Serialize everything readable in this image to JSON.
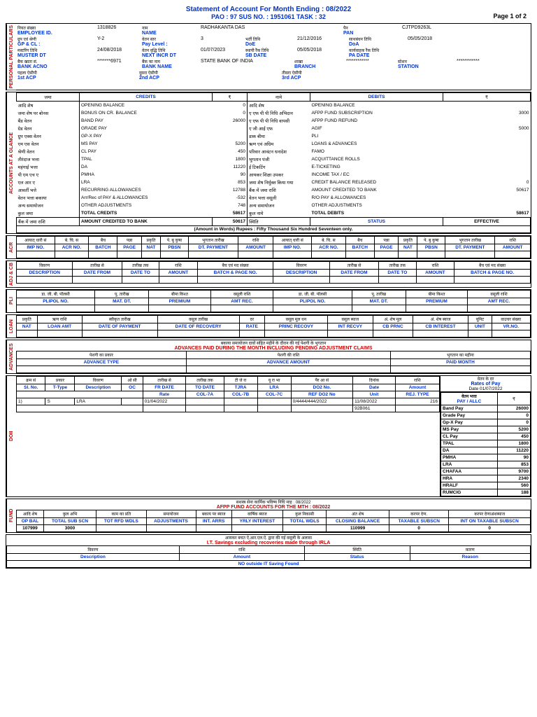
{
  "header": {
    "title": "Statement of Account For Month Ending : 08/2022",
    "subtitle": "PAO : 97   SUS NO. : 1951061  TASK : 32",
    "page": "Page 1 of 2"
  },
  "personal": {
    "label": "PERSONAL PARTICULARS",
    "emp_id_h": "नियत संख्या",
    "emp_id_l": "EMPLOYEE ID.",
    "emp_id_v": "1318826",
    "name_h": "नाम",
    "name_l": "NAME",
    "name_v": "RADHAKANTA DAS",
    "pan_h": "पैन",
    "pan_l": "PAN",
    "pan_v": "CJTPD9263L",
    "gp_h": "ग्रुप एवं श्रेणी",
    "gp_l": "GP & CL :",
    "gp_v": "Y-2",
    "pay_h": "वेतन स्तर",
    "pay_l": "Pay Level :",
    "pay_v": "3",
    "doe_h": "भर्ती तिथि",
    "doe_l": "DoE",
    "doe_v": "21/12/2016",
    "doa_h": "साथबंधन तिथि",
    "doa_l": "DoA",
    "doa_v": "05/05/2018",
    "muster_h": "मस्टरिंग तिथि",
    "muster_l": "MUSTER DT",
    "muster_v": "24/08/2018",
    "incr_h": "वेतन वृद्धि तिथि",
    "incr_l": "NEXT INCR DT",
    "incr_v": "01/07/2023",
    "sb_h": "स्थायी रैंक तिथि",
    "sb_l": "SB DATE",
    "sb_v": "05/05/2018",
    "pa_h": "कार्यवाहक रैंक तिथि",
    "pa_l": "PA DATE",
    "pa_v": "",
    "acno_h": "बैंक खाता सं.",
    "acno_l": "BANK ACNO",
    "acno_v": "*******6971",
    "bank_h": "बैंक का नाम",
    "bank_l": "BANK NAME",
    "bank_v": "STATE BANK OF INDIA",
    "branch_h": "शाखा",
    "branch_l": "BRANCH",
    "branch_v": "************",
    "station_h": "स्टेशन",
    "station_l": "STATION",
    "station_v": "************",
    "acp1_h": "पहला ऐसीपी",
    "acp1_l": "1st ACP",
    "acp2_h": "दूसरा ऐसीपी",
    "acp2_l": "2nd ACP",
    "acp3_h": "तीसरा ऐसीपी",
    "acp3_l": "3rd ACP"
  },
  "accounts": {
    "label": "ACCOUNTS AT A GLANCE",
    "credits_h": "जमा",
    "credits_l": "CREDITS",
    "debits_h": "नामे",
    "debits_l": "DEBITS",
    "rupee": "₹",
    "credit_items": [
      {
        "h": "आदि शेष",
        "l": "OPENING BALANCE",
        "v": "0"
      },
      {
        "h": "जमा शेष पर बोनस",
        "l": "BONUS ON CR. BALANCE",
        "v": "0"
      },
      {
        "h": "बैंड वेतन",
        "l": "BAND PAY",
        "v": "26000"
      },
      {
        "h": "ग्रेड वेतन",
        "l": "GRADE PAY",
        "v": ""
      },
      {
        "h": "ग्रुप एक्स वेतन",
        "l": "GP-X PAY",
        "v": ""
      },
      {
        "h": "एम एस वेतन",
        "l": "MS PAY",
        "v": "5200"
      },
      {
        "h": "श्रेणी वेतन",
        "l": "CL PAY",
        "v": "450"
      },
      {
        "h": "तीरंदाज भत्ता",
        "l": "TPAL",
        "v": "1800"
      },
      {
        "h": "महंगाई भत्ता",
        "l": "DA",
        "v": "11220"
      },
      {
        "h": "पी एम एच ए",
        "l": "PMHA",
        "v": "90"
      },
      {
        "h": "एल आर ए",
        "l": "LRA",
        "v": "853"
      },
      {
        "h": "आवर्ती भत्ते",
        "l": "RECURRING ALLOWANCES",
        "v": "12788"
      },
      {
        "h": "वेतन भत्ता बकाया",
        "l": "Arr/Rec of PAY & ALLOWANCES",
        "v": "-532"
      },
      {
        "h": "अन्य समायोजन",
        "l": "OTHER ADJUSTMENTS",
        "v": "748"
      },
      {
        "h": "कुल जमा",
        "l": "TOTAL CREDITS",
        "v": "58617"
      }
    ],
    "debit_items": [
      {
        "h": "आदि शेष",
        "l": "OPENING BALANCE",
        "v": ""
      },
      {
        "h": "ए एफ पी पी निधि अभिदान",
        "l": "AFPP FUND SUBSCRIPTION",
        "v": "3000"
      },
      {
        "h": "ए एफ पी पी निधि वापसी",
        "l": "AFPP FUND REFUND",
        "v": ""
      },
      {
        "h": "ए जी आई एफ",
        "l": "AGIF",
        "v": "5000"
      },
      {
        "h": "डाक बीमा",
        "l": "PLI",
        "v": ""
      },
      {
        "h": "ऋण एवं अग्रिम",
        "l": "LOANS & ADVANCES",
        "v": ""
      },
      {
        "h": "परिवार आवंटन धनादेश",
        "l": "FAMO",
        "v": ""
      },
      {
        "h": "भुगतान पंजी",
        "l": "ACQUITTANCE ROLLS",
        "v": ""
      },
      {
        "h": "ई टिकटिंग",
        "l": "E-TICKETING",
        "v": ""
      },
      {
        "h": "आयकर शिक्षा उपकर",
        "l": "INCOME TAX / EC",
        "v": ""
      },
      {
        "h": "जमा शेष निर्मुक्त किया गया",
        "l": "CREDIT BALANCE RELEASED",
        "v": "0"
      },
      {
        "h": "बैंक में जमा राशि",
        "l": "AMOUNT CREDITED TO BANK",
        "v": "50617"
      },
      {
        "h": "वेतन भत्ता वसूली",
        "l": "R/O PAY & ALLOWANCES",
        "v": ""
      },
      {
        "h": "अन्य समायोजन",
        "l": "OTHER ADJUSTMENTS",
        "v": ""
      },
      {
        "h": "कुल नामे",
        "l": "TOTAL DEBITS",
        "v": "58617"
      }
    ],
    "credited_h": "बैंक में जमा राशि",
    "credited_l": "AMOUNT CREDITED TO BANK",
    "credited_v": "50617",
    "status_h": "स्थिति",
    "status_l": "STATUS",
    "effective": "EFFECTIVE",
    "words": "(Amount in Words) Rupees : Fifty Thousand Six Hundred Seventeen  only."
  },
  "acr": {
    "label": "ACR",
    "headers": [
      {
        "h": "आयात्‌ धारी सं",
        "l": "IMP NO."
      },
      {
        "h": "बे. चि. स",
        "l": "ACR NO."
      },
      {
        "h": "बैच",
        "l": "BATCH"
      },
      {
        "h": "पन्ना",
        "l": "PAGE"
      },
      {
        "h": "प्रकृति",
        "l": "NAT"
      },
      {
        "h": "पे. बु कुषा",
        "l": "PBSN"
      },
      {
        "h": "भुगतान तारीख",
        "l": "DT. PAYMENT"
      },
      {
        "h": "राशि",
        "l": "AMOUNT"
      },
      {
        "h": "आयात्‌ धारी सं",
        "l": "IMP NO."
      },
      {
        "h": "बे. चि. स",
        "l": "ACR NO."
      },
      {
        "h": "बैच",
        "l": "BATCH"
      },
      {
        "h": "पन्ना",
        "l": "PAGE"
      },
      {
        "h": "प्रकृति",
        "l": "NAT"
      },
      {
        "h": "पे. बु कुषा",
        "l": "PBSN"
      },
      {
        "h": "भुगतान तारीख",
        "l": "DT. PAYMENT"
      },
      {
        "h": "राशि",
        "l": "AMOUNT"
      }
    ]
  },
  "adj": {
    "label": "ADJ & CB",
    "headers": [
      {
        "h": "विवरण",
        "l": "DESCRIPTION"
      },
      {
        "h": "तारीख से",
        "l": "DATE FROM"
      },
      {
        "h": "तारीख तक",
        "l": "DATE TO"
      },
      {
        "h": "राशि",
        "l": "AMOUNT"
      },
      {
        "h": "बैच एवं मद संख्या",
        "l": "BATCH & PAGE NO."
      },
      {
        "h": "विवरण",
        "l": "DESCRIPTION"
      },
      {
        "h": "तारीख से",
        "l": "DATE FROM"
      },
      {
        "h": "तारीख तक",
        "l": "DATE TO"
      },
      {
        "h": "राशि",
        "l": "AMOUNT"
      },
      {
        "h": "बैच एवं मद संख्या",
        "l": "BATCH & PAGE NO."
      }
    ]
  },
  "pli": {
    "label": "PLI",
    "headers": [
      {
        "h": "डा. जी. बी. पॉलसी",
        "l": "PLIPOL NO."
      },
      {
        "h": "पू. तारीख",
        "l": "MAT. DT."
      },
      {
        "h": "बीमा किश्त",
        "l": "PREMIUM"
      },
      {
        "h": "वसूली राशि",
        "l": "AMT REC."
      },
      {
        "h": "डा. जी. बी. पॉलसी",
        "l": "PLIPOL NO."
      },
      {
        "h": "पू. तारीख",
        "l": "MAT. DT."
      },
      {
        "h": "बीमा किश्त",
        "l": "PREMIUM"
      },
      {
        "h": "वसूली राशि",
        "l": "AMT REC."
      }
    ]
  },
  "loan": {
    "label": "LOAN",
    "headers": [
      {
        "h": "प्रकृति",
        "l": "NAT"
      },
      {
        "h": "ऋण राशि",
        "l": "LOAN AMT"
      },
      {
        "h": "स्वीकृत तारीख",
        "l": "DATE OF PAYMENT"
      },
      {
        "h": "वसूल तारीख",
        "l": "DATE OF RECOVERY"
      },
      {
        "h": "दर",
        "l": "RATE"
      },
      {
        "h": "वसूल मूल धन",
        "l": "PRINC RECOVY"
      },
      {
        "h": "वसूल ब्याज",
        "l": "INT RECVY"
      },
      {
        "h": "अं. शेष मूल",
        "l": "CB PRNC"
      },
      {
        "h": "अं. शेष ब्याज",
        "l": "CB INTEREST"
      },
      {
        "h": "यूनिट",
        "l": "UNIT"
      },
      {
        "h": "वाउचर संख्या",
        "l": "VR.NO."
      }
    ]
  },
  "advances": {
    "label": "ADVANCES",
    "title_h": "बकाया समायोजन दावों सहित महीने के दौरान की गई पेशगी के भुगतान",
    "title_l": "ADVANCES PAID DURING THE MONTH INCLUDING PENDING ADJUSTMENT CLAIMS",
    "headers": [
      {
        "h": "पेशगी का प्रकार",
        "l": "ADVANCE TYPE"
      },
      {
        "h": "पेशगी की राशि",
        "l": "ADVANCE AMOUNT"
      },
      {
        "h": "भुगतान का महीना",
        "l": "PAID MONTH"
      }
    ]
  },
  "do2": {
    "label": "DOII",
    "headers1": [
      {
        "h": "क्रम सं",
        "l": "Sl. No."
      },
      {
        "h": "प्रकार",
        "l": "T-Type"
      },
      {
        "h": "विवरण",
        "l": "Description"
      },
      {
        "h": "ओ सी",
        "l": "OC"
      },
      {
        "h": "तारीख से",
        "l": "FR DATE"
      },
      {
        "h": "तारीख तक",
        "l": "TO DATE"
      },
      {
        "h": "टी जे रा",
        "l": "TJRA"
      },
      {
        "h": "यू रा भा",
        "l": "LRA"
      },
      {
        "h": "पैर आ सं",
        "l": "DO2 No."
      },
      {
        "h": "दिनांक",
        "l": "Date"
      },
      {
        "h": "राशि",
        "l": "Amount"
      }
    ],
    "headers2": [
      {
        "l": "Rate"
      },
      {
        "l": "COL-7A"
      },
      {
        "l": "COL-7B"
      },
      {
        "l": "COL-7C"
      },
      {
        "l": "REF DO2 No"
      },
      {
        "l": "Unit"
      },
      {
        "l": "REJ. TYPE"
      }
    ],
    "rates_title_h": "वेतन के दर",
    "rates_title_l": "Rates of Pay",
    "rates_date": "Date 01/07/2022",
    "rates_sub_h": "वेतन भत्ता",
    "rates_sub_l": "PAY / ALLC",
    "rates_rupee": "₹",
    "row": {
      "sl": "1)",
      "t": "S",
      "desc": "LRA",
      "fr": "01/04/2022",
      "do2": "0/4444/444/2022",
      "date": "11/08/2022",
      "amt": "216",
      "unit": "92B061"
    },
    "rates": [
      {
        "l": "Band Pay",
        "v": "26000"
      },
      {
        "l": "Grade Pay",
        "v": "0"
      },
      {
        "l": "Gp-X Pay",
        "v": "0"
      },
      {
        "l": "MS Pay",
        "v": "5200"
      },
      {
        "l": "CL Pay",
        "v": "450"
      },
      {
        "l": "TPAL",
        "v": "1800"
      },
      {
        "l": "DA",
        "v": "11220"
      },
      {
        "l": "PMHA",
        "v": "90"
      },
      {
        "l": "LRA",
        "v": "853"
      },
      {
        "l": "CHAFAA",
        "v": "9700"
      },
      {
        "l": "HRA",
        "v": "2340"
      },
      {
        "l": "HRALF",
        "v": "560"
      },
      {
        "l": "RUMCIG",
        "v": "188"
      }
    ]
  },
  "fund": {
    "label": "FUND",
    "title_h": "सशस्त्र सेना कार्मिक भविष्य निधि माह : 08/2022",
    "title_l": "AFPP FUND ACCOUNTS FOR THE MTH : 08/2022",
    "headers": [
      {
        "h": "आदि शेष",
        "l": "OP BAL"
      },
      {
        "h": "कुल अभि",
        "l": "TOTAL SUB SCN"
      },
      {
        "h": "काम का प्रति",
        "l": "TOT RFD WDLS"
      },
      {
        "h": "समायोजन",
        "l": "ADJUSTMENTS"
      },
      {
        "h": "बकाय पर ब्याज",
        "l": "INT. ARRS"
      },
      {
        "h": "वार्षिक ब्याज",
        "l": "YRLY INTEREST"
      },
      {
        "h": "कुल निकासी",
        "l": "TOTAL WDLS"
      },
      {
        "h": "अंत शेष",
        "l": "CLOSING BALANCE"
      },
      {
        "h": "करपर देण.",
        "l": "TAXABLE SUBSCN"
      },
      {
        "h": "करपर देणाअंशब्याज",
        "l": "INT ON TAXABLE SUBSCN"
      }
    ],
    "row": [
      "107999",
      "3000",
      "",
      "",
      "",
      "",
      "",
      "110999",
      "0",
      "0"
    ]
  },
  "it": {
    "title_h": "आयकर बचत ऐ.आर.एल.ऐ. द्वारा की गई वसूली के अलावा",
    "title_l": "I.T. Savings excluding recoveries made through IRLA",
    "headers": [
      {
        "h": "विवरण",
        "l": "Description"
      },
      {
        "h": "राशि",
        "l": "Amount"
      },
      {
        "h": "स्थिति",
        "l": "Status"
      },
      {
        "h": "कारण",
        "l": "Reason"
      }
    ],
    "notfound": "NO outside IT Saving Found"
  }
}
